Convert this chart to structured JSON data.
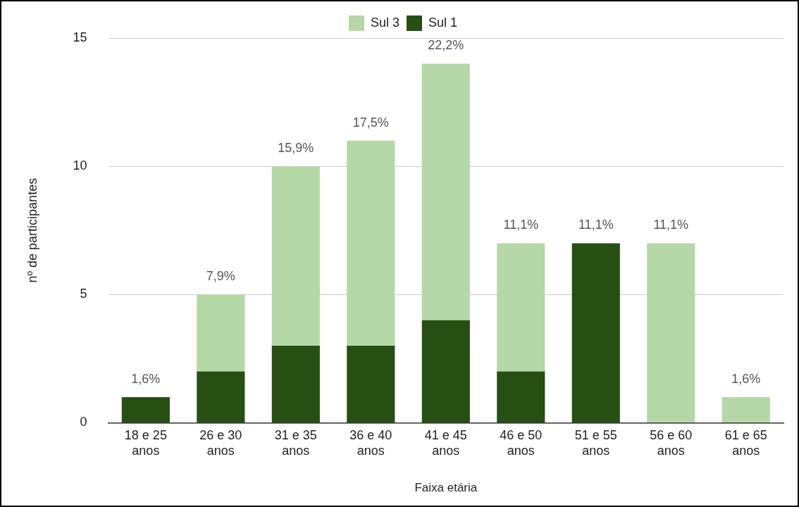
{
  "chart_data": {
    "type": "bar",
    "stacked": true,
    "xlabel": "Faixa etária",
    "ylabel": "nº de participantes",
    "categories": [
      "18 e 25 anos",
      "26 e 30 anos",
      "31 e 35 anos",
      "36 e 40 anos",
      "41 e 45 anos",
      "46 e 50 anos",
      "51 e 55 anos",
      "56 e 60 anos",
      "61 e 65 anos"
    ],
    "series": [
      {
        "name": "Sul 1",
        "color": "#274e13",
        "values": [
          1,
          2,
          3,
          3,
          4,
          2,
          7,
          0,
          0
        ]
      },
      {
        "name": "Sul 3",
        "color": "#b6d7a8",
        "values": [
          0,
          3,
          7,
          8,
          10,
          5,
          0,
          7,
          1
        ]
      }
    ],
    "annotations": [
      {
        "text": "1,6%",
        "x": "18 e 25 anos",
        "y": 1
      },
      {
        "text": "7,9%",
        "x": "26 e 30 anos",
        "y": 5
      },
      {
        "text": "15,9%",
        "x": "31 e 35 anos",
        "y": 10
      },
      {
        "text": "17,5%",
        "x": "36 e 40 anos",
        "y": 11
      },
      {
        "text": "22,2%",
        "x": "41 e 45 anos",
        "y": 14
      },
      {
        "text": "11,1%",
        "x": "46 e 50 anos",
        "y": 7
      },
      {
        "text": "11,1%",
        "x": "51 e 55 anos",
        "y": 7
      },
      {
        "text": "11,1%",
        "x": "56 e 60 anos",
        "y": 7
      },
      {
        "text": "1,6%",
        "x": "61 e 65 anos",
        "y": 1
      }
    ],
    "ylim": [
      0,
      15
    ],
    "yticks": [
      0,
      5,
      10,
      15
    ],
    "grid": "y",
    "legend": "top"
  }
}
